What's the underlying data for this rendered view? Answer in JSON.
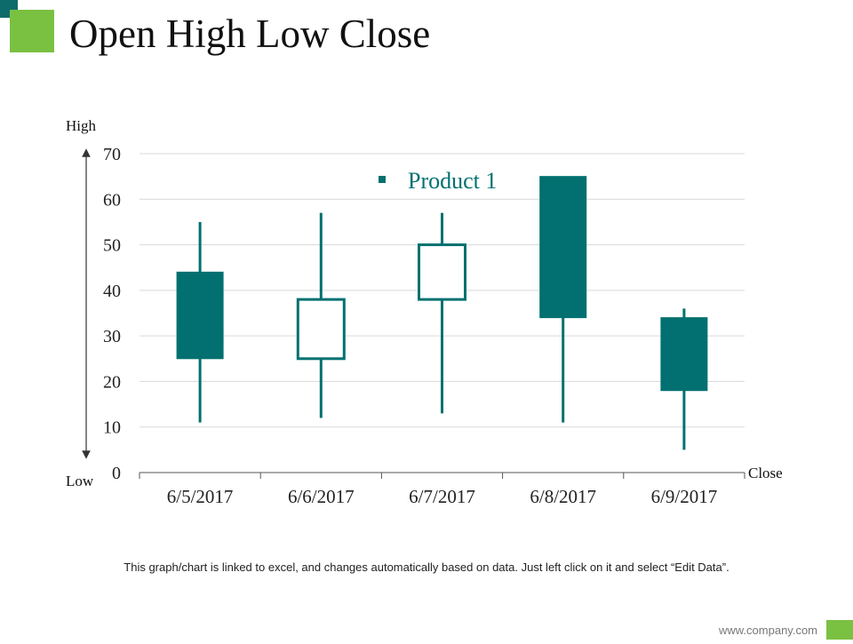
{
  "slide": {
    "title": "Open High Low Close",
    "footnote": "This graph/chart is linked to excel, and changes automatically based on data. Just left click on it and select “Edit Data”.",
    "website": "www.company.com"
  },
  "colors": {
    "accent_green": "#7ac142",
    "accent_teal": "#0e6b6b",
    "series": "#027070",
    "grid": "#d9d9d9"
  },
  "chart_data": {
    "type": "candlestick",
    "title": "",
    "legend": [
      "Product 1"
    ],
    "legend_position": "top-center",
    "categories": [
      "6/5/2017",
      "6/6/2017",
      "6/7/2017",
      "6/8/2017",
      "6/9/2017"
    ],
    "series": [
      {
        "name": "Product 1",
        "open": [
          44,
          25,
          38,
          65,
          34
        ],
        "high": [
          55,
          57,
          57,
          65,
          36
        ],
        "low": [
          11,
          12,
          13,
          11,
          5
        ],
        "close": [
          25,
          38,
          50,
          34,
          18
        ]
      }
    ],
    "yticks": [
      0,
      10,
      20,
      30,
      40,
      50,
      60,
      70
    ],
    "ylim": [
      0,
      70
    ],
    "grid": true,
    "annotations": {
      "top": "High",
      "bottom": "Low",
      "right": "Close"
    }
  }
}
